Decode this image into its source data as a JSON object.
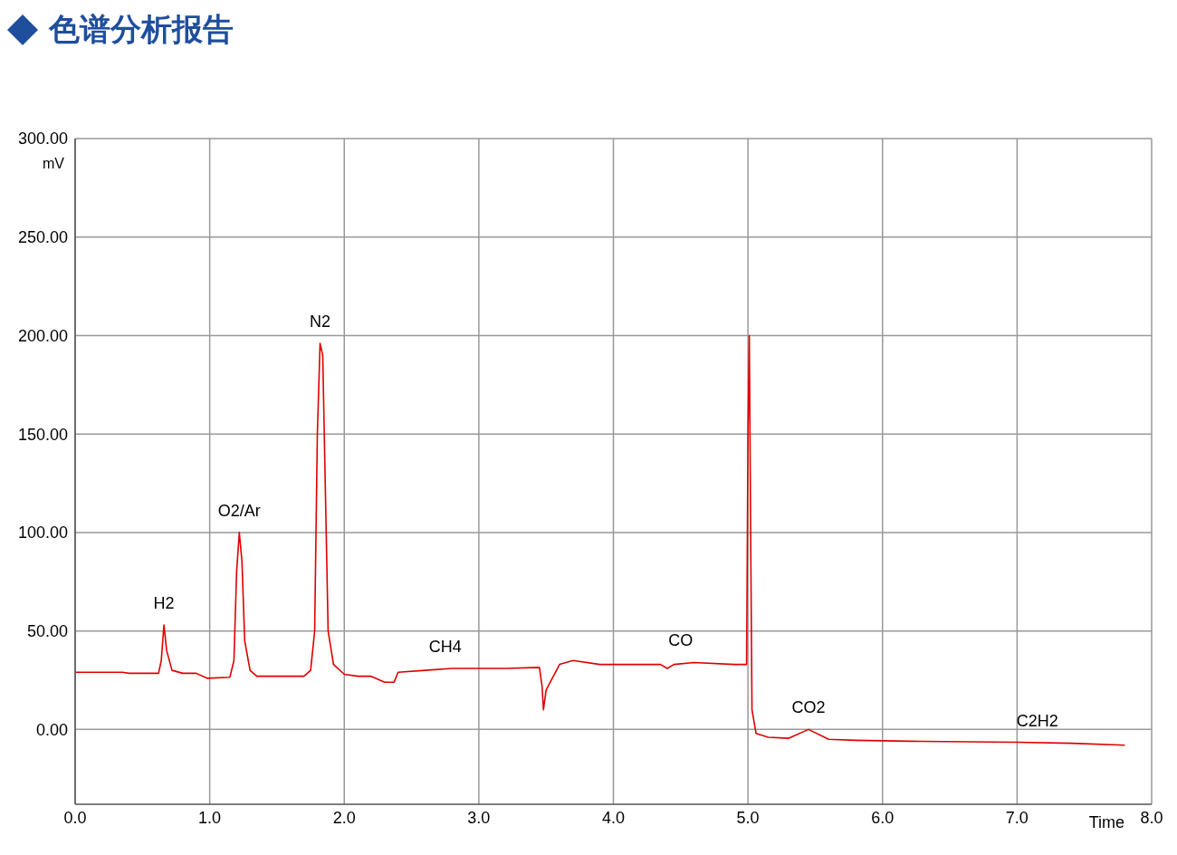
{
  "chart_data": {
    "type": "line",
    "title": "色谱分析报告",
    "xlabel": "Time",
    "ylabel": "mV",
    "xlim": [
      0,
      8
    ],
    "xticks": [
      {
        "value": 0,
        "label": "0.0"
      },
      {
        "value": 1,
        "label": "1.0"
      },
      {
        "value": 2,
        "label": "2.0"
      },
      {
        "value": 3,
        "label": "3.0"
      },
      {
        "value": 4,
        "label": "4.0"
      },
      {
        "value": 5,
        "label": "5.0"
      },
      {
        "value": 6,
        "label": "6.0"
      },
      {
        "value": 7,
        "label": "7.0"
      },
      {
        "value": 8,
        "label": "8.0"
      }
    ],
    "ylim": [
      -38,
      300
    ],
    "yticks": [
      {
        "value": 0,
        "label": "0.00"
      },
      {
        "value": 50,
        "label": "50.00"
      },
      {
        "value": 100,
        "label": "100.00"
      },
      {
        "value": 150,
        "label": "150.00"
      },
      {
        "value": 200,
        "label": "200.00"
      },
      {
        "value": 250,
        "label": "250.00"
      },
      {
        "value": 300,
        "label": "300.00"
      }
    ],
    "grid": true,
    "marker": "none",
    "line_style": "solid",
    "series": [
      {
        "color": "#e00000",
        "x": [
          0,
          0.35,
          0.4,
          0.62,
          0.64,
          0.66,
          0.68,
          0.72,
          0.8,
          0.9,
          0.98,
          1.15,
          1.18,
          1.2,
          1.22,
          1.24,
          1.26,
          1.3,
          1.35,
          1.7,
          1.75,
          1.78,
          1.8,
          1.82,
          1.84,
          1.86,
          1.88,
          1.92,
          2.0,
          2.1,
          2.2,
          2.3,
          2.37,
          2.4,
          2.6,
          2.8,
          3.0,
          3.2,
          3.45,
          3.47,
          3.48,
          3.5,
          3.6,
          3.7,
          3.9,
          4.2,
          4.35,
          4.4,
          4.45,
          4.6,
          4.9,
          4.99,
          5.0,
          5.01,
          5.02,
          5.03,
          5.06,
          5.15,
          5.3,
          5.45,
          5.6,
          5.8,
          6.2,
          7.0,
          7.4,
          7.8
        ],
        "values": [
          29,
          29,
          28.5,
          28.5,
          35,
          53,
          40,
          30,
          28.5,
          28.5,
          26,
          26.5,
          35,
          80,
          100,
          85,
          45,
          30,
          27,
          27,
          30,
          50,
          150,
          196,
          190,
          120,
          50,
          33,
          28,
          27,
          27,
          24,
          24,
          29,
          30,
          31,
          31,
          31,
          31.5,
          22,
          10,
          20,
          33,
          35,
          33,
          33,
          33,
          31,
          33,
          34,
          33,
          33,
          150,
          200,
          100,
          10,
          -2,
          -4,
          -4.5,
          0,
          -5,
          -5.5,
          -6,
          -6.5,
          -7,
          -8
        ]
      }
    ],
    "annotations": [
      {
        "text": "H2",
        "x": 0.66,
        "y": 53
      },
      {
        "text": "O2/Ar",
        "x": 1.22,
        "y": 100
      },
      {
        "text": "N2",
        "x": 1.82,
        "y": 196
      },
      {
        "text": "CH4",
        "x": 2.75,
        "y": 31
      },
      {
        "text": "CO",
        "x": 4.5,
        "y": 34
      },
      {
        "text": "CO2",
        "x": 5.45,
        "y": 0
      },
      {
        "text": "C2H2",
        "x": 7.15,
        "y": -6.5
      }
    ]
  }
}
